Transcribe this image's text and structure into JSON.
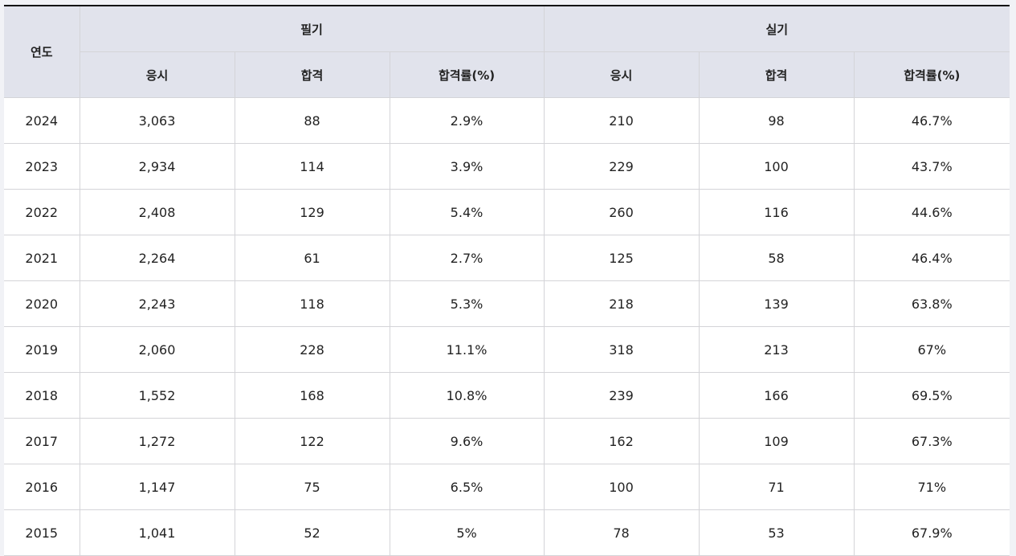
{
  "table": {
    "year_header": "연도",
    "groups": [
      "필기",
      "실기"
    ],
    "sub_headers": [
      "응시",
      "합격",
      "합격률(%)",
      "응시",
      "합격",
      "합격률(%)"
    ],
    "rows": [
      [
        "2024",
        "3,063",
        "88",
        "2.9%",
        "210",
        "98",
        "46.7%"
      ],
      [
        "2023",
        "2,934",
        "114",
        "3.9%",
        "229",
        "100",
        "43.7%"
      ],
      [
        "2022",
        "2,408",
        "129",
        "5.4%",
        "260",
        "116",
        "44.6%"
      ],
      [
        "2021",
        "2,264",
        "61",
        "2.7%",
        "125",
        "58",
        "46.4%"
      ],
      [
        "2020",
        "2,243",
        "118",
        "5.3%",
        "218",
        "139",
        "63.8%"
      ],
      [
        "2019",
        "2,060",
        "228",
        "11.1%",
        "318",
        "213",
        "67%"
      ],
      [
        "2018",
        "1,552",
        "168",
        "10.8%",
        "239",
        "166",
        "69.5%"
      ],
      [
        "2017",
        "1,272",
        "122",
        "9.6%",
        "162",
        "109",
        "67.3%"
      ],
      [
        "2016",
        "1,147",
        "75",
        "6.5%",
        "100",
        "71",
        "71%"
      ],
      [
        "2015",
        "1,041",
        "52",
        "5%",
        "78",
        "53",
        "67.9%"
      ]
    ]
  }
}
